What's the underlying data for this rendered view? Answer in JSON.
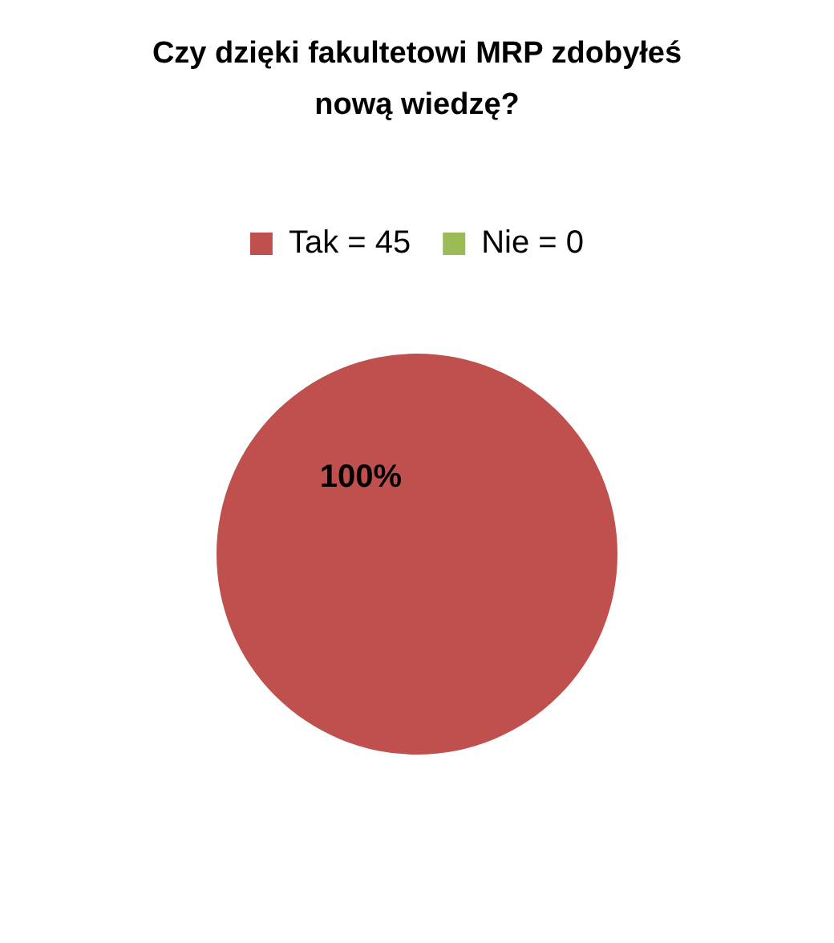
{
  "chart_data": {
    "type": "pie",
    "title": "Czy dzięki fakultetowi MRP zdobyłeś nową wiedzę?",
    "categories": [
      "Tak = 45",
      "Nie = 0"
    ],
    "values": [
      100,
      0
    ],
    "colors": [
      "#c0504d",
      "#9bbb59"
    ],
    "value_labels": [
      "100%",
      null
    ],
    "legend": "top"
  }
}
